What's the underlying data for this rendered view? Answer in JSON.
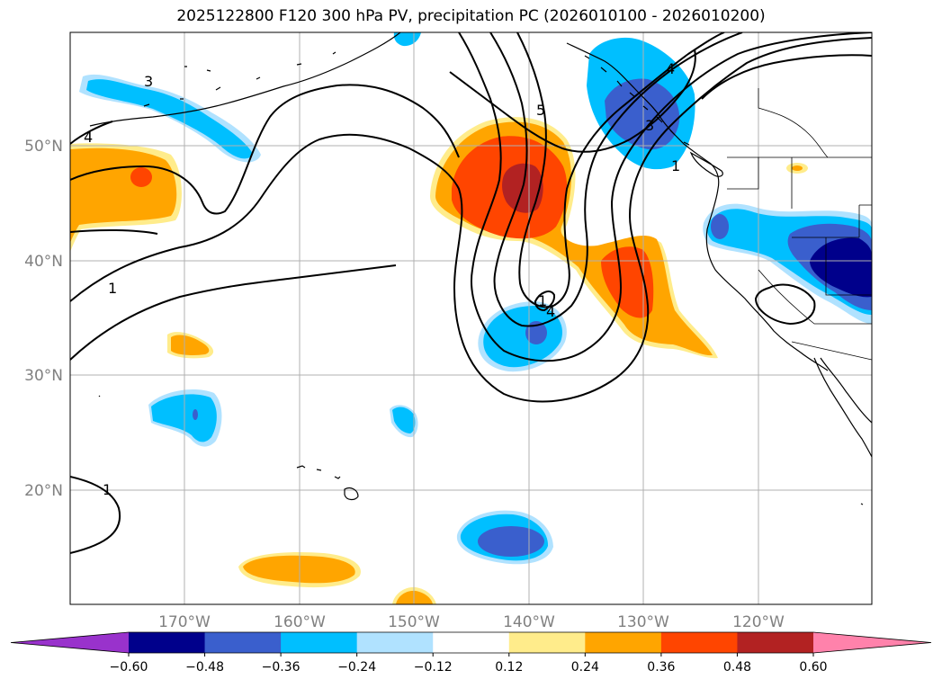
{
  "title": "2025122800 F120 300 hPa PV, precipitation PC (2026010100 - 2026010200)",
  "map": {
    "lat_labels": [
      "50°N",
      "40°N",
      "30°N",
      "20°N"
    ],
    "lon_labels": [
      "170°W",
      "160°W",
      "150°W",
      "140°W",
      "130°W",
      "120°W"
    ],
    "contour_labels": [
      "3",
      "4",
      "1",
      "5",
      "3",
      "4",
      "1",
      "1",
      "1",
      "4"
    ]
  },
  "colorbar": {
    "ticks": [
      "−0.60",
      "−0.48",
      "−0.36",
      "−0.24",
      "−0.12",
      "0.12",
      "0.24",
      "0.36",
      "0.48",
      "0.60"
    ],
    "colors": [
      "#9932cc",
      "#00008b",
      "#3a5fcd",
      "#00bfff",
      "#b0e2ff",
      "#ffffff",
      "#ffec8b",
      "#ffa500",
      "#ff4500",
      "#b22222",
      "#ff82ab"
    ]
  },
  "colors": {
    "pos_light": "#ffec8b",
    "pos_mid": "#ffa500",
    "pos_strong": "#ff4500",
    "pos_max": "#b22222",
    "neg_light": "#b0e2ff",
    "neg_mid": "#00bfff",
    "neg_strong": "#3a5fcd",
    "neg_max": "#00008b",
    "grid": "#b0b0b0"
  }
}
